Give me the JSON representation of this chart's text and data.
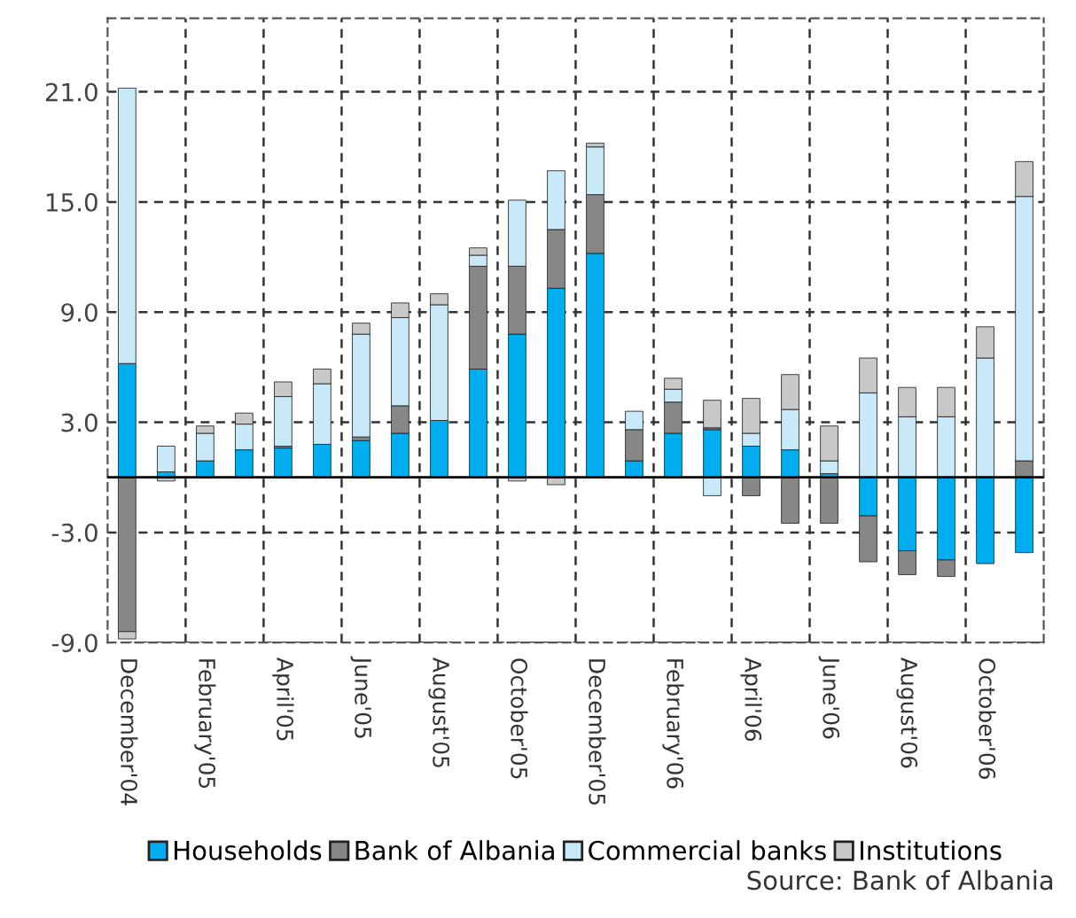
{
  "chart_data": {
    "type": "bar",
    "stacked": true,
    "categories": [
      "December'04",
      null,
      "February'05",
      null,
      "April'05",
      null,
      "June'05",
      null,
      "August'05",
      null,
      "October'05",
      null,
      "December'05",
      null,
      "February'06",
      null,
      "April'06",
      null,
      "June'06",
      null,
      "August'06",
      null,
      "October'06",
      null
    ],
    "series": [
      {
        "name": "Households",
        "color": "#00aeef",
        "values": [
          6.2,
          0.3,
          0.9,
          1.5,
          1.6,
          1.8,
          2.0,
          2.4,
          3.1,
          5.9,
          7.8,
          10.3,
          12.2,
          0.9,
          2.4,
          2.6,
          1.7,
          1.5,
          0.2,
          -2.1,
          -4.0,
          -4.5,
          -4.7,
          -4.1
        ]
      },
      {
        "name": "Bank of Albania",
        "color": "#878787",
        "values": [
          -8.4,
          0,
          0,
          0,
          0.1,
          0,
          0.2,
          1.5,
          0,
          5.6,
          3.7,
          3.2,
          3.2,
          1.7,
          1.7,
          0.1,
          -1.0,
          -2.5,
          -2.5,
          -2.5,
          -1.3,
          -0.9,
          0,
          0.9
        ]
      },
      {
        "name": "Commercial banks",
        "color": "#c9e9f8",
        "values": [
          15.0,
          1.4,
          1.5,
          1.4,
          2.7,
          3.3,
          5.6,
          4.8,
          6.3,
          0.6,
          3.6,
          3.2,
          2.6,
          1.0,
          0.7,
          -1.0,
          0.7,
          2.2,
          0.7,
          4.6,
          3.3,
          3.3,
          6.5,
          14.4
        ]
      },
      {
        "name": "Institutions",
        "color": "#c8c8c8",
        "values": [
          -0.4,
          -0.2,
          0.4,
          0.6,
          0.8,
          0.8,
          0.6,
          0.8,
          0.6,
          0.4,
          -0.2,
          -0.4,
          0.2,
          0,
          0.6,
          1.5,
          1.9,
          1.9,
          1.9,
          1.9,
          1.6,
          1.6,
          1.7,
          1.9
        ]
      }
    ],
    "ylim": [
      -9,
      25
    ],
    "yticks": [
      {
        "value": -9,
        "label": "-9.0"
      },
      {
        "value": -3,
        "label": "-3.0"
      },
      {
        "value": 3,
        "label": "3.0"
      },
      {
        "value": 9,
        "label": "9.0"
      },
      {
        "value": 15,
        "label": "15.0"
      },
      {
        "value": 21,
        "label": "21.0"
      }
    ],
    "grid": true,
    "legend": "bottom",
    "annotations": [
      "Source: Bank of Albania"
    ]
  }
}
